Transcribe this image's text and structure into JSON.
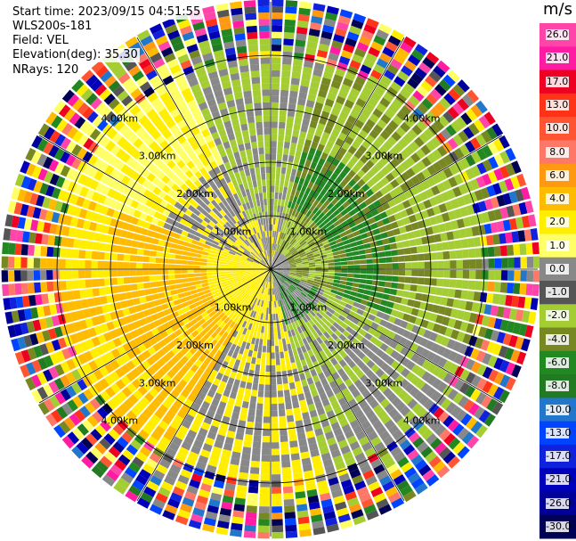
{
  "info": {
    "start_time": "Start time: 2023/09/15 04:51:55",
    "instrument": "WLS200s-181",
    "field": "Field: VEL",
    "elevation": "Elevation(deg): 35.30",
    "nrays": "NRays: 120"
  },
  "chart_data": {
    "type": "heatmap",
    "subtype": "ppi-polar",
    "field": "VEL",
    "n_rays": 120,
    "colorbar_unit": "m/s",
    "colorbar_ticks": [
      "26.0",
      "21.0",
      "17.0",
      "13.0",
      "10.0",
      "8.0",
      "6.0",
      "4.0",
      "2.0",
      "1.0",
      "0.0",
      "-1.0",
      "-2.0",
      "-4.0",
      "-6.0",
      "-8.0",
      "-10.0",
      "-13.0",
      "-17.0",
      "-21.0",
      "-26.0",
      "-30.0"
    ],
    "colorbar_colors": [
      "#ff44aa",
      "#ff1ca2",
      "#ee0022",
      "#ff3318",
      "#ff5533",
      "#ff7766",
      "#ff9911",
      "#ffbb00",
      "#ffee00",
      "#ffff66",
      "#888888",
      "#555555",
      "#a4cc33",
      "#778822",
      "#228822",
      "#227a22",
      "#2277cc",
      "#0044ff",
      "#1122dd",
      "#0000bb",
      "#000099",
      "#000055"
    ],
    "range_rings_km": [
      1,
      2,
      3,
      4
    ],
    "ring_labels": {
      "ring1": [
        "1.00km",
        "1.00km",
        "1.00km",
        "1.00km"
      ],
      "ring2": [
        "2.00km",
        "2.00km",
        "2.00km",
        "2.00km"
      ],
      "ring3": [
        "3.00km",
        "3.00km",
        "3.00km",
        "3.00km"
      ],
      "ring4": [
        "4.00km",
        "4.00km",
        "4.00km",
        "4.00km"
      ]
    },
    "max_range_km": 5
  }
}
